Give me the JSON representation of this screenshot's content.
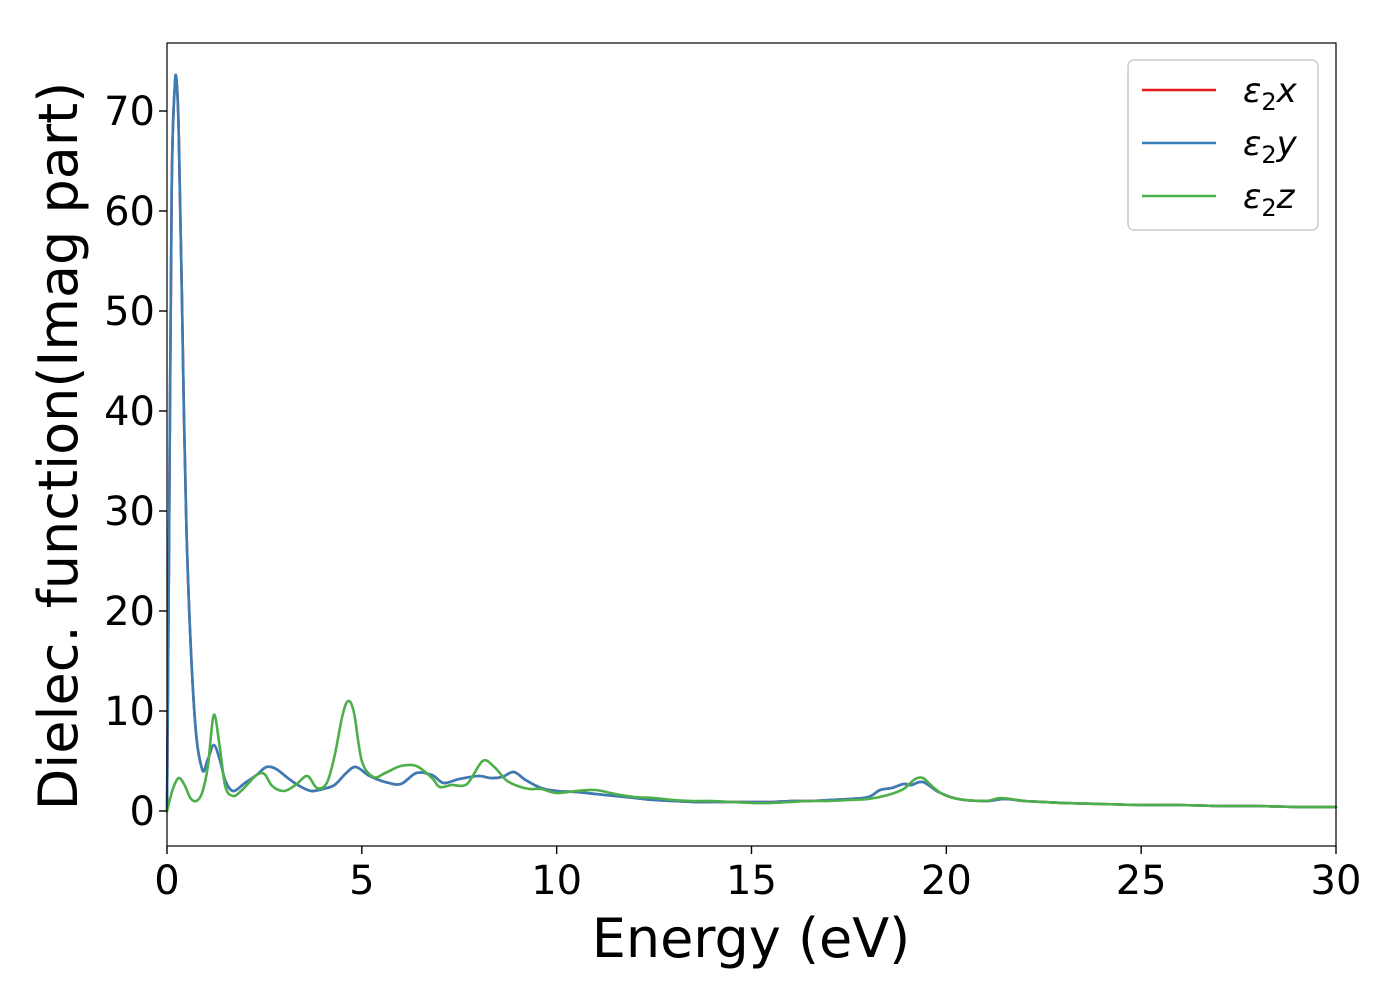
{
  "chart_data": {
    "type": "line",
    "title": "",
    "xlabel": "Energy (eV)",
    "ylabel": "Dielec. function(Imag part)",
    "xlim": [
      0,
      30
    ],
    "ylim": [
      -3.5,
      76.8
    ],
    "xticks": [
      0,
      5,
      10,
      15,
      20,
      25,
      30
    ],
    "yticks": [
      0,
      10,
      20,
      30,
      40,
      50,
      60,
      70
    ],
    "grid": false,
    "legend_position": "top-right",
    "series": [
      {
        "name": "ε2x",
        "legend": {
          "base": "ε",
          "sub": "2",
          "suffix": "x"
        },
        "color": "#e41a1c",
        "x": [
          0,
          0.05,
          0.12,
          0.2,
          0.25,
          0.3,
          0.38,
          0.5,
          0.7,
          0.9,
          1.05,
          1.2,
          1.35,
          1.5,
          1.7,
          2.0,
          2.3,
          2.55,
          2.8,
          3.1,
          3.4,
          3.7,
          4.0,
          4.3,
          4.6,
          4.85,
          5.2,
          5.6,
          6.0,
          6.4,
          6.8,
          7.1,
          7.5,
          8.0,
          8.3,
          8.6,
          8.9,
          9.2,
          9.6,
          10.0,
          10.5,
          11.0,
          11.5,
          12.0,
          12.5,
          13.0,
          13.5,
          14.0,
          14.5,
          15.0,
          15.5,
          16.0,
          16.5,
          17.0,
          17.5,
          18.0,
          18.3,
          18.6,
          18.9,
          19.1,
          19.4,
          19.8,
          20.3,
          21.0,
          21.5,
          22.0,
          22.5,
          23.0,
          24.0,
          25.0,
          26.0,
          27.0,
          28.0,
          29.0,
          30.0
        ],
        "values": [
          0,
          25,
          62,
          72.5,
          72.8,
          68,
          52,
          28,
          10,
          4.2,
          5.2,
          6.6,
          5.2,
          3.0,
          2.0,
          2.8,
          3.6,
          4.4,
          4.2,
          3.3,
          2.5,
          2.0,
          2.2,
          2.6,
          3.8,
          4.4,
          3.5,
          2.9,
          2.7,
          3.8,
          3.6,
          2.8,
          3.2,
          3.5,
          3.3,
          3.4,
          3.9,
          3.1,
          2.3,
          2.0,
          1.9,
          1.7,
          1.5,
          1.3,
          1.1,
          1.0,
          0.9,
          0.9,
          0.9,
          0.9,
          0.9,
          1.0,
          1.0,
          1.1,
          1.2,
          1.4,
          2.1,
          2.3,
          2.7,
          2.6,
          2.9,
          1.9,
          1.2,
          1.0,
          1.2,
          1.0,
          0.9,
          0.8,
          0.7,
          0.6,
          0.6,
          0.5,
          0.5,
          0.4,
          0.4
        ]
      },
      {
        "name": "ε2y",
        "legend": {
          "base": "ε",
          "sub": "2",
          "suffix": "y"
        },
        "color": "#377eb8",
        "x": [
          0,
          0.05,
          0.12,
          0.2,
          0.25,
          0.3,
          0.38,
          0.5,
          0.7,
          0.9,
          1.05,
          1.2,
          1.35,
          1.5,
          1.7,
          2.0,
          2.3,
          2.55,
          2.8,
          3.1,
          3.4,
          3.7,
          4.0,
          4.3,
          4.6,
          4.85,
          5.2,
          5.6,
          6.0,
          6.4,
          6.8,
          7.1,
          7.5,
          8.0,
          8.3,
          8.6,
          8.9,
          9.2,
          9.6,
          10.0,
          10.5,
          11.0,
          11.5,
          12.0,
          12.5,
          13.0,
          13.5,
          14.0,
          14.5,
          15.0,
          15.5,
          16.0,
          16.5,
          17.0,
          17.5,
          18.0,
          18.3,
          18.6,
          18.9,
          19.1,
          19.4,
          19.8,
          20.3,
          21.0,
          21.5,
          22.0,
          22.5,
          23.0,
          24.0,
          25.0,
          26.0,
          27.0,
          28.0,
          29.0,
          30.0
        ],
        "values": [
          0,
          25,
          62,
          72.5,
          72.8,
          68,
          52,
          28,
          10,
          4.2,
          5.2,
          6.6,
          5.2,
          3.0,
          2.0,
          2.8,
          3.6,
          4.4,
          4.2,
          3.3,
          2.5,
          2.0,
          2.2,
          2.6,
          3.8,
          4.4,
          3.5,
          2.9,
          2.7,
          3.8,
          3.6,
          2.8,
          3.2,
          3.5,
          3.3,
          3.4,
          3.9,
          3.1,
          2.3,
          2.0,
          1.9,
          1.7,
          1.5,
          1.3,
          1.1,
          1.0,
          0.9,
          0.9,
          0.9,
          0.9,
          0.9,
          1.0,
          1.0,
          1.1,
          1.2,
          1.4,
          2.1,
          2.3,
          2.7,
          2.6,
          2.9,
          1.9,
          1.2,
          1.0,
          1.2,
          1.0,
          0.9,
          0.8,
          0.7,
          0.6,
          0.6,
          0.5,
          0.5,
          0.4,
          0.4
        ]
      },
      {
        "name": "ε2z",
        "legend": {
          "base": "ε",
          "sub": "2",
          "suffix": "z"
        },
        "color": "#4daf4a",
        "x": [
          0,
          0.15,
          0.3,
          0.45,
          0.6,
          0.75,
          0.9,
          1.05,
          1.2,
          1.35,
          1.5,
          1.7,
          1.9,
          2.1,
          2.3,
          2.5,
          2.7,
          3.0,
          3.3,
          3.6,
          3.85,
          4.1,
          4.3,
          4.5,
          4.65,
          4.8,
          5.0,
          5.3,
          5.6,
          6.0,
          6.4,
          6.8,
          7.0,
          7.3,
          7.7,
          8.1,
          8.4,
          8.7,
          9.0,
          9.3,
          9.6,
          10.0,
          10.5,
          11.0,
          11.5,
          12.0,
          12.5,
          13.0,
          13.5,
          14.0,
          14.5,
          15.0,
          15.5,
          16.0,
          16.5,
          17.0,
          17.5,
          18.0,
          18.5,
          18.9,
          19.2,
          19.4,
          19.6,
          19.9,
          20.3,
          21.0,
          21.4,
          22.0,
          22.5,
          23.0,
          24.0,
          25.0,
          26.0,
          27.0,
          28.0,
          29.0,
          30.0
        ],
        "values": [
          0,
          2.2,
          3.3,
          2.6,
          1.3,
          1.0,
          1.8,
          4.5,
          9.6,
          6.5,
          2.4,
          1.5,
          2.0,
          2.8,
          3.6,
          3.7,
          2.5,
          2.0,
          2.6,
          3.5,
          2.3,
          2.8,
          5.5,
          9.5,
          11.0,
          9.8,
          5.0,
          3.4,
          3.8,
          4.5,
          4.5,
          3.3,
          2.4,
          2.6,
          2.7,
          5.0,
          4.4,
          3.1,
          2.5,
          2.2,
          2.2,
          1.8,
          2.0,
          2.1,
          1.7,
          1.4,
          1.3,
          1.1,
          1.0,
          1.0,
          0.9,
          0.8,
          0.8,
          0.9,
          1.0,
          1.0,
          1.1,
          1.2,
          1.6,
          2.2,
          3.2,
          3.3,
          2.6,
          1.7,
          1.2,
          1.0,
          1.3,
          1.0,
          0.9,
          0.8,
          0.7,
          0.6,
          0.6,
          0.5,
          0.5,
          0.4,
          0.4
        ]
      }
    ]
  }
}
